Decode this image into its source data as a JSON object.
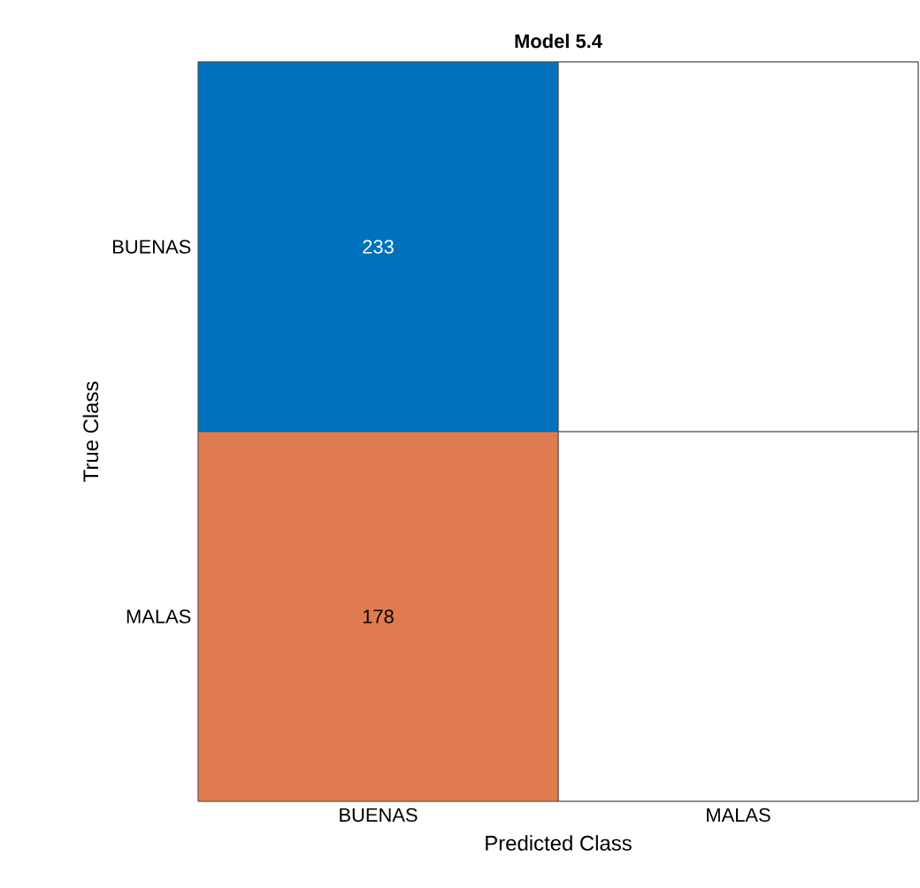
{
  "chart_data": {
    "type": "heatmap",
    "title": "Model 5.4",
    "xlabel": "Predicted Class",
    "ylabel": "True Class",
    "categories": [
      "BUENAS",
      "MALAS"
    ],
    "y_categories": [
      "BUENAS",
      "MALAS"
    ],
    "cells": [
      [
        233,
        null
      ],
      [
        178,
        null
      ]
    ],
    "data_labels": true,
    "colors": [
      [
        "#0072bd",
        null
      ],
      [
        "#e07b4f",
        null
      ]
    ]
  }
}
